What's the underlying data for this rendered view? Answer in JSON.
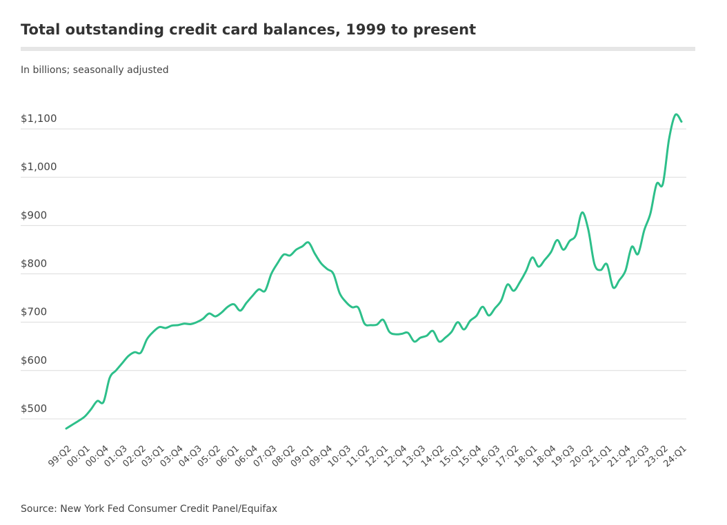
{
  "chart_data": {
    "type": "line",
    "title": "Total outstanding credit card balances, 1999 to present",
    "subtitle": "In billions; seasonally adjusted",
    "source": "Source: New York Fed Consumer Credit Panel/Equifax",
    "categories": [
      "99:Q2",
      null,
      null,
      "00:Q1",
      null,
      null,
      "00:Q4",
      null,
      null,
      "01:Q3",
      null,
      null,
      "02:Q2",
      null,
      null,
      "03:Q1",
      null,
      null,
      "03:Q4",
      null,
      null,
      "04:Q3",
      null,
      null,
      "05:Q2",
      null,
      null,
      "06:Q1",
      null,
      null,
      "06:Q4",
      null,
      null,
      "07:Q3",
      null,
      null,
      "08:Q2",
      null,
      null,
      "09:Q1",
      null,
      null,
      "09:Q4",
      null,
      null,
      "10:Q3",
      null,
      null,
      "11:Q2",
      null,
      null,
      "12:Q1",
      null,
      null,
      "12:Q4",
      null,
      null,
      "13:Q3",
      null,
      null,
      "14:Q2",
      null,
      null,
      "15:Q1",
      null,
      null,
      "15:Q4",
      null,
      null,
      "16:Q3",
      null,
      null,
      "17:Q2",
      null,
      null,
      "18:Q1",
      null,
      null,
      "18:Q4",
      null,
      null,
      "19:Q3",
      null,
      null,
      "20:Q2",
      null,
      null,
      "21:Q1",
      null,
      null,
      "21:Q4",
      null,
      null,
      "22:Q3",
      null,
      null,
      "23:Q2",
      null,
      null,
      "24:Q1"
    ],
    "values": [
      480,
      488,
      496,
      505,
      520,
      537,
      535,
      585,
      600,
      615,
      630,
      638,
      637,
      665,
      680,
      690,
      688,
      693,
      694,
      697,
      696,
      700,
      707,
      718,
      712,
      720,
      732,
      737,
      724,
      740,
      755,
      768,
      765,
      800,
      822,
      840,
      838,
      850,
      857,
      865,
      842,
      822,
      810,
      800,
      760,
      742,
      731,
      730,
      697,
      694,
      695,
      705,
      680,
      675,
      676,
      678,
      660,
      668,
      672,
      682,
      660,
      668,
      680,
      700,
      685,
      703,
      713,
      732,
      714,
      729,
      745,
      778,
      765,
      783,
      806,
      834,
      815,
      829,
      845,
      870,
      850,
      868,
      880,
      927,
      892,
      820,
      808,
      820,
      772,
      787,
      807,
      856,
      841,
      890,
      925,
      986,
      986,
      1079,
      1129,
      1115
    ],
    "color": "#2dbf8a",
    "ylim": [
      460,
      1160
    ],
    "yticks": [
      {
        "value": 500,
        "label": "$500"
      },
      {
        "value": 600,
        "label": "$600"
      },
      {
        "value": 700,
        "label": "$700"
      },
      {
        "value": 800,
        "label": "$800"
      },
      {
        "value": 900,
        "label": "$900"
      },
      {
        "value": 1000,
        "label": "$1,000"
      },
      {
        "value": 1100,
        "label": "$1,100"
      }
    ],
    "grid": true
  }
}
